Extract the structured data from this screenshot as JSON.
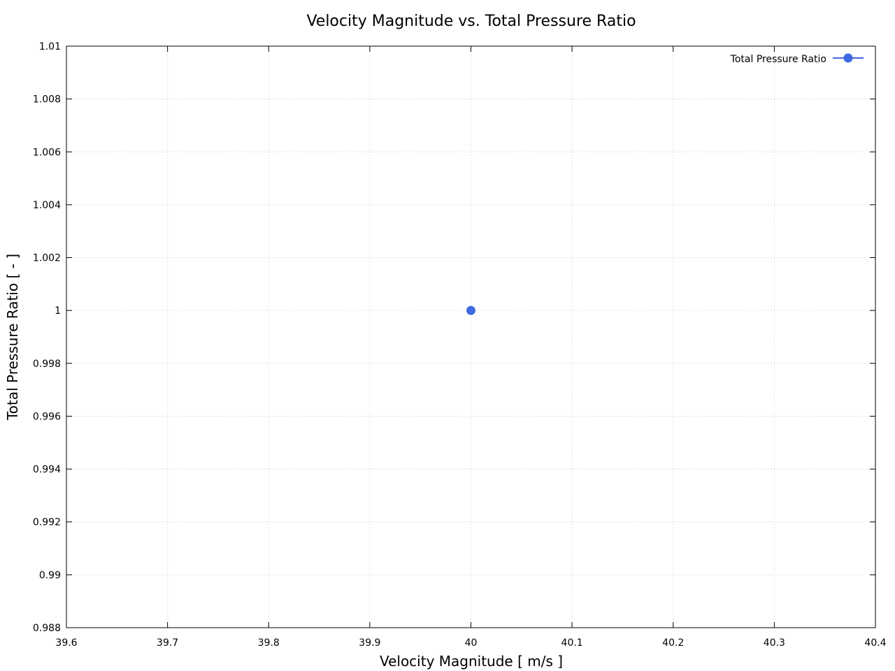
{
  "chart_data": {
    "type": "line",
    "title": "Velocity Magnitude vs. Total Pressure Ratio",
    "xlabel": "Velocity Magnitude [ m/s ]",
    "ylabel": "Total Pressure Ratio [ - ]",
    "xlim": [
      39.6,
      40.4
    ],
    "ylim": [
      0.988,
      1.01
    ],
    "xticks": [
      "39.6",
      "39.7",
      "39.8",
      "39.9",
      "40",
      "40.1",
      "40.2",
      "40.3",
      "40.4"
    ],
    "yticks": [
      "0.988",
      "0.99",
      "0.992",
      "0.994",
      "0.996",
      "0.998",
      "1",
      "1.002",
      "1.004",
      "1.006",
      "1.008",
      "1.01"
    ],
    "grid": true,
    "legend_position": "top-right",
    "series": [
      {
        "name": "Total Pressure Ratio",
        "color": "#4169e1",
        "marker": "circle",
        "points": [
          {
            "x": 40.0,
            "y": 1.0
          }
        ]
      }
    ]
  }
}
